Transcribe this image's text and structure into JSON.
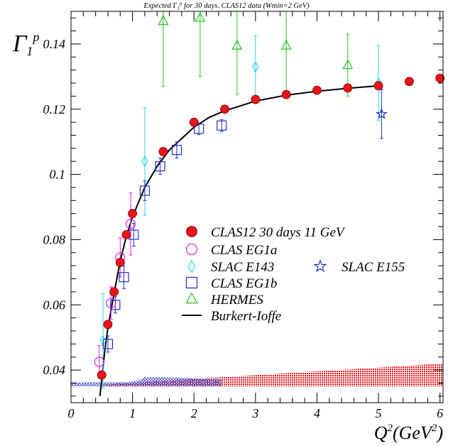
{
  "chart_data": {
    "type": "scatter",
    "title": "Expected Γ₁ᵖ for 30 days. CLAS12 data (Wmin=2 GeV)",
    "ylabel": "Γ₁ᵖ",
    "xlabel": "Q²(GeV²)",
    "xlim": [
      0,
      6.05
    ],
    "ylim": [
      0.03,
      0.15
    ],
    "x_ticks": [
      0,
      1,
      2,
      3,
      4,
      5,
      6
    ],
    "y_ticks": [
      0.04,
      0.06,
      0.08,
      0.1,
      0.12,
      0.14
    ],
    "legend_position": "center-right",
    "series": [
      {
        "name": "CLAS12 30 days 11 GeV",
        "marker": "filled-circle",
        "color": "#e8141b",
        "points": [
          {
            "x": 0.5,
            "y": 0.0385,
            "err": 0.0008
          },
          {
            "x": 0.6,
            "y": 0.054,
            "err": 0.0008
          },
          {
            "x": 0.7,
            "y": 0.064,
            "err": 0.0008
          },
          {
            "x": 0.8,
            "y": 0.073,
            "err": 0.0008
          },
          {
            "x": 0.9,
            "y": 0.0815,
            "err": 0.0008
          },
          {
            "x": 1.0,
            "y": 0.088,
            "err": 0.0008
          },
          {
            "x": 1.5,
            "y": 0.107,
            "err": 0.0008
          },
          {
            "x": 2.0,
            "y": 0.116,
            "err": 0.0008
          },
          {
            "x": 2.5,
            "y": 0.12,
            "err": 0.0008
          },
          {
            "x": 3.0,
            "y": 0.123,
            "err": 0.0008
          },
          {
            "x": 3.5,
            "y": 0.1245,
            "err": 0.0008
          },
          {
            "x": 4.0,
            "y": 0.1258,
            "err": 0.0008
          },
          {
            "x": 4.5,
            "y": 0.1265,
            "err": 0.0008
          },
          {
            "x": 5.0,
            "y": 0.1272,
            "err": 0.0008
          },
          {
            "x": 5.5,
            "y": 0.1285,
            "err": 0.0008
          },
          {
            "x": 6.0,
            "y": 0.1295,
            "err": 0.0008
          }
        ]
      },
      {
        "name": "CLAS EG1a",
        "marker": "open-circle",
        "color": "#e020e0",
        "points": [
          {
            "x": 0.46,
            "y": 0.0425,
            "err": 0.005
          },
          {
            "x": 0.65,
            "y": 0.0605,
            "err": 0.005
          },
          {
            "x": 0.8,
            "y": 0.0745,
            "err": 0.006
          },
          {
            "x": 0.97,
            "y": 0.0848,
            "err": 0.0095
          }
        ]
      },
      {
        "name": "SLAC E143",
        "marker": "open-diamond",
        "color": "#27d8e8",
        "points": [
          {
            "x": 0.52,
            "y": 0.049,
            "err": 0.0145
          },
          {
            "x": 1.2,
            "y": 0.104,
            "err": 0.0165
          },
          {
            "x": 3.0,
            "y": 0.133,
            "err": 0.0095
          },
          {
            "x": 5.0,
            "y": 0.128,
            "err": 0.0115
          }
        ]
      },
      {
        "name": "SLAC E155",
        "marker": "open-star",
        "color": "#2030cc",
        "points": [
          {
            "x": 5.05,
            "y": 0.1185,
            "err": 0.0075
          }
        ]
      },
      {
        "name": "CLAS EG1b",
        "marker": "open-square",
        "color": "#2030cc",
        "points": [
          {
            "x": 0.6,
            "y": 0.048,
            "err": 0.0025
          },
          {
            "x": 0.72,
            "y": 0.06,
            "err": 0.0025
          },
          {
            "x": 0.86,
            "y": 0.0685,
            "err": 0.0035
          },
          {
            "x": 1.02,
            "y": 0.0815,
            "err": 0.0035
          },
          {
            "x": 1.2,
            "y": 0.095,
            "err": 0.003
          },
          {
            "x": 1.45,
            "y": 0.1025,
            "err": 0.0025
          },
          {
            "x": 1.72,
            "y": 0.1075,
            "err": 0.0025
          },
          {
            "x": 2.08,
            "y": 0.114,
            "err": 0.0018
          },
          {
            "x": 2.45,
            "y": 0.115,
            "err": 0.0018
          }
        ]
      },
      {
        "name": "HERMES",
        "marker": "open-triangle",
        "color": "#24c024",
        "points": [
          {
            "x": 1.5,
            "y": 0.147,
            "err": 0.02
          },
          {
            "x": 2.1,
            "y": 0.148,
            "err": 0.018
          },
          {
            "x": 2.7,
            "y": 0.1395,
            "err": 0.015
          },
          {
            "x": 3.5,
            "y": 0.1395,
            "err": 0.015
          },
          {
            "x": 4.5,
            "y": 0.1335,
            "err": 0.0095
          }
        ]
      }
    ],
    "curve": {
      "name": "Burkert-Ioffe",
      "color": "#000000",
      "points": [
        [
          0.47,
          0.032
        ],
        [
          0.5,
          0.037
        ],
        [
          0.55,
          0.046
        ],
        [
          0.6,
          0.053
        ],
        [
          0.7,
          0.0635
        ],
        [
          0.8,
          0.0735
        ],
        [
          0.9,
          0.081
        ],
        [
          1.0,
          0.087
        ],
        [
          1.2,
          0.096
        ],
        [
          1.4,
          0.1025
        ],
        [
          1.6,
          0.1075
        ],
        [
          1.8,
          0.111
        ],
        [
          2.0,
          0.1145
        ],
        [
          2.25,
          0.1175
        ],
        [
          2.5,
          0.1195
        ],
        [
          2.75,
          0.121
        ],
        [
          3.0,
          0.1225
        ],
        [
          3.5,
          0.1243
        ],
        [
          4.0,
          0.1255
        ],
        [
          4.5,
          0.1264
        ],
        [
          5.0,
          0.1272
        ]
      ]
    },
    "systematic_bands": [
      {
        "color": "#e8141b",
        "x": [
          0.5,
          6.05
        ],
        "bottom": 0.035,
        "top_start": 0.0355,
        "top_end": 0.042
      },
      {
        "color": "#2030cc",
        "x": [
          0.0,
          2.45
        ],
        "bottom": 0.035,
        "top": [
          [
            0.0,
            0.0362
          ],
          [
            0.9,
            0.0363
          ],
          [
            1.1,
            0.0368
          ],
          [
            1.2,
            0.0378
          ],
          [
            1.5,
            0.0378
          ],
          [
            2.45,
            0.0372
          ]
        ]
      }
    ],
    "legend": [
      {
        "marker": "filled-circle",
        "color": "#e8141b",
        "label": "CLAS12 30 days 11 GeV"
      },
      {
        "marker": "open-circle",
        "color": "#e020e0",
        "label": "CLAS EG1a"
      },
      {
        "marker": "open-diamond",
        "color": "#27d8e8",
        "label": "SLAC E143"
      },
      {
        "marker": "open-star",
        "color": "#2030cc",
        "label": "SLAC E155"
      },
      {
        "marker": "open-square",
        "color": "#2030cc",
        "label": "CLAS EG1b"
      },
      {
        "marker": "open-triangle",
        "color": "#24c024",
        "label": "HERMES"
      },
      {
        "marker": "line",
        "color": "#000000",
        "label": "Burkert-Ioffe"
      }
    ]
  }
}
